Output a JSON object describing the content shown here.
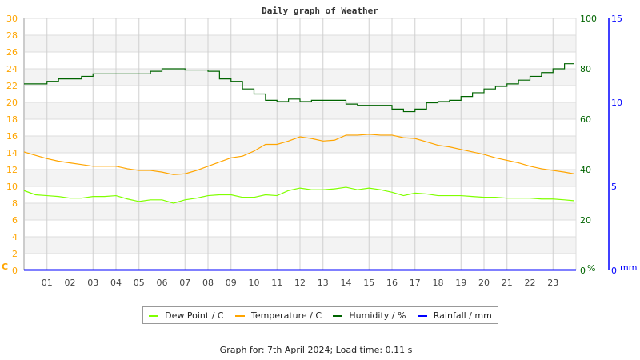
{
  "chart_data": {
    "type": "line",
    "title": "Daily graph of Weather",
    "x_ticks": [
      "01",
      "02",
      "03",
      "04",
      "05",
      "06",
      "07",
      "08",
      "09",
      "10",
      "11",
      "12",
      "13",
      "14",
      "15",
      "16",
      "17",
      "18",
      "19",
      "20",
      "21",
      "22",
      "23"
    ],
    "xlim": [
      0,
      24
    ],
    "axes": {
      "left": {
        "unit": "C",
        "ylim": [
          0,
          30
        ],
        "ticks": [
          "0",
          "2",
          "4",
          "6",
          "8",
          "10",
          "12",
          "14",
          "16",
          "18",
          "20",
          "22",
          "24",
          "26",
          "28",
          "30"
        ],
        "color": "#ffa500"
      },
      "right1": {
        "unit": "%",
        "ylim": [
          0,
          100
        ],
        "ticks": [
          "0",
          "20",
          "40",
          "60",
          "80",
          "100"
        ],
        "color": "#006400"
      },
      "right2": {
        "unit": "mm",
        "ylim": [
          0,
          15
        ],
        "ticks": [
          "0",
          "5",
          "10",
          "15"
        ],
        "color": "#0000ff"
      }
    },
    "x": [
      0,
      0.5,
      1,
      1.5,
      2,
      2.5,
      3,
      3.5,
      4,
      4.5,
      5,
      5.5,
      6,
      6.5,
      7,
      7.5,
      8,
      8.5,
      9,
      9.5,
      10,
      10.5,
      11,
      11.5,
      12,
      12.5,
      13,
      13.5,
      14,
      14.5,
      15,
      15.5,
      16,
      16.5,
      17,
      17.5,
      18,
      18.5,
      19,
      19.5,
      20,
      20.5,
      21,
      21.5,
      22,
      22.5,
      23,
      23.5,
      23.9
    ],
    "series": [
      {
        "name": "Dew Point / C",
        "axis": "left",
        "color": "#80ff00",
        "values": [
          9.5,
          9.0,
          8.9,
          8.8,
          8.6,
          8.6,
          8.8,
          8.8,
          8.9,
          8.5,
          8.2,
          8.4,
          8.4,
          8.0,
          8.4,
          8.6,
          8.9,
          9.0,
          9.0,
          8.7,
          8.7,
          9.0,
          8.9,
          9.5,
          9.8,
          9.6,
          9.6,
          9.7,
          9.9,
          9.6,
          9.8,
          9.6,
          9.3,
          8.9,
          9.2,
          9.1,
          8.9,
          8.9,
          8.9,
          8.8,
          8.7,
          8.7,
          8.6,
          8.6,
          8.6,
          8.5,
          8.5,
          8.4,
          8.3
        ]
      },
      {
        "name": "Temperature / C",
        "axis": "left",
        "color": "#ffa500",
        "values": [
          14.1,
          13.7,
          13.3,
          13.0,
          12.8,
          12.6,
          12.4,
          12.4,
          12.4,
          12.1,
          11.9,
          11.9,
          11.7,
          11.4,
          11.5,
          11.9,
          12.4,
          12.9,
          13.4,
          13.6,
          14.2,
          15.0,
          15.0,
          15.4,
          15.9,
          15.7,
          15.4,
          15.5,
          16.1,
          16.1,
          16.2,
          16.1,
          16.1,
          15.8,
          15.7,
          15.3,
          14.9,
          14.7,
          14.4,
          14.1,
          13.8,
          13.4,
          13.1,
          12.8,
          12.4,
          12.1,
          11.9,
          11.7,
          11.5
        ]
      },
      {
        "name": "Humidity / %",
        "axis": "right1",
        "color": "#006400",
        "values": [
          74,
          74,
          75,
          76,
          76,
          77,
          78,
          78,
          78,
          78,
          78,
          79,
          80,
          80,
          79.5,
          79.5,
          79,
          76,
          75,
          72,
          70,
          67.5,
          67,
          68,
          67,
          67.5,
          67.5,
          67.5,
          66,
          65.5,
          65.5,
          65.5,
          64,
          63,
          64,
          66.5,
          67,
          67.5,
          69,
          70.5,
          72,
          73,
          74,
          75.5,
          77,
          78.5,
          80,
          82,
          82
        ]
      },
      {
        "name": "Rainfall / mm",
        "axis": "right2",
        "color": "#0000ff",
        "values": [
          0,
          0,
          0,
          0,
          0,
          0,
          0,
          0,
          0,
          0,
          0,
          0,
          0,
          0,
          0,
          0,
          0,
          0,
          0,
          0,
          0,
          0,
          0,
          0,
          0,
          0,
          0,
          0,
          0,
          0,
          0,
          0,
          0,
          0,
          0,
          0,
          0,
          0,
          0,
          0,
          0,
          0,
          0,
          0,
          0,
          0,
          0,
          0,
          0
        ]
      }
    ],
    "legend_position": "bottom-center",
    "grid": true
  },
  "footer": "Graph for: 7th April 2024; Load time: 0.11 s"
}
